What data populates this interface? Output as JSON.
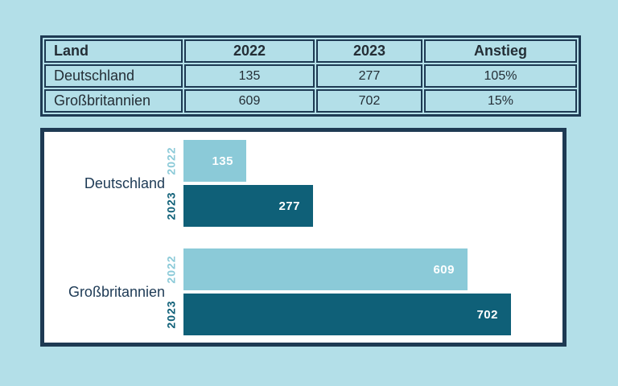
{
  "page": {
    "background_color": "#b3dfe8",
    "border_color": "#1e3a53"
  },
  "table": {
    "headers": [
      "Land",
      "2022",
      "2023",
      "Anstieg"
    ],
    "rows": [
      {
        "cells": [
          "Deutschland",
          "135",
          "277",
          "105%"
        ]
      },
      {
        "cells": [
          "Großbritannien",
          "609",
          "702",
          "15%"
        ]
      }
    ]
  },
  "chart_data": {
    "type": "bar",
    "orientation": "horizontal",
    "title": "",
    "xlabel": "",
    "ylabel": "",
    "categories": [
      "Deutschland",
      "Großbritannien"
    ],
    "series": [
      {
        "name": "2022",
        "values": [
          135,
          609
        ],
        "color": "#8bcad8"
      },
      {
        "name": "2023",
        "values": [
          277,
          702
        ],
        "color": "#0f6078"
      }
    ],
    "value_labels": [
      "135",
      "277",
      "609",
      "702"
    ],
    "value_label_color": "#ffffff",
    "xlim": [
      0,
      720
    ],
    "grid": false,
    "legend_position": "rotated-year-labels-beside-bars",
    "panel_background": "#ffffff",
    "category_label_color": "#1d3a55"
  }
}
